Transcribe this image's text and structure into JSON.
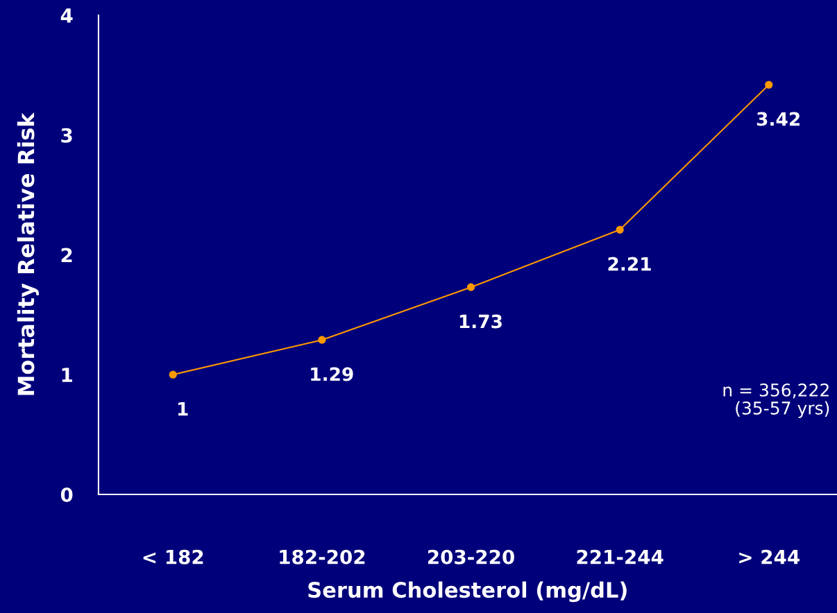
{
  "chart_data": {
    "type": "line",
    "xlabel": "Serum Cholesterol (mg/dL)",
    "ylabel": "Mortality Relative Risk",
    "categories": [
      "< 182",
      "182-202",
      "203-220",
      "221-244",
      "> 244"
    ],
    "series": [
      {
        "color": "#ff9900",
        "values": [
          1,
          1.29,
          1.73,
          2.21,
          3.42
        ]
      }
    ],
    "ylim": [
      0,
      4
    ],
    "yticks": [
      0,
      1,
      2,
      3,
      4
    ],
    "grid": false,
    "marker": "circle",
    "line_style": "solid",
    "data_labels": true,
    "annotations": [
      "n = 356,222\n(35-57 yrs)"
    ]
  }
}
